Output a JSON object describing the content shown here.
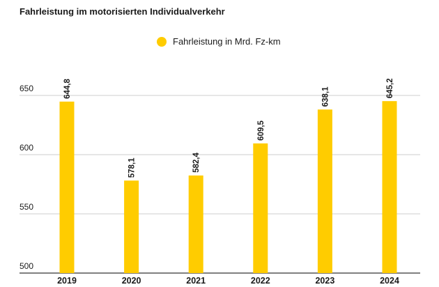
{
  "chart_data": {
    "type": "bar",
    "title": "Fahrleistung im motorisierten Individualverkehr",
    "categories": [
      "2019",
      "2020",
      "2021",
      "2022",
      "2023",
      "2024"
    ],
    "series": [
      {
        "name": "Fahrleistung in Mrd. Fz-km",
        "values": [
          644.8,
          578.1,
          582.4,
          609.5,
          638.1,
          645.2
        ],
        "value_labels": [
          "644,8",
          "578,1",
          "582,4",
          "609,5",
          "638,1",
          "645,2"
        ],
        "color": "#ffcc00"
      }
    ],
    "ylim": [
      500,
      650
    ],
    "yticks": [
      {
        "value": 500,
        "label": "500"
      },
      {
        "value": 550,
        "label": "550"
      },
      {
        "value": 600,
        "label": "600"
      },
      {
        "value": 650,
        "label": "650"
      }
    ],
    "grid": true,
    "legend_position": "top-center",
    "xlabel": "",
    "ylabel": ""
  }
}
